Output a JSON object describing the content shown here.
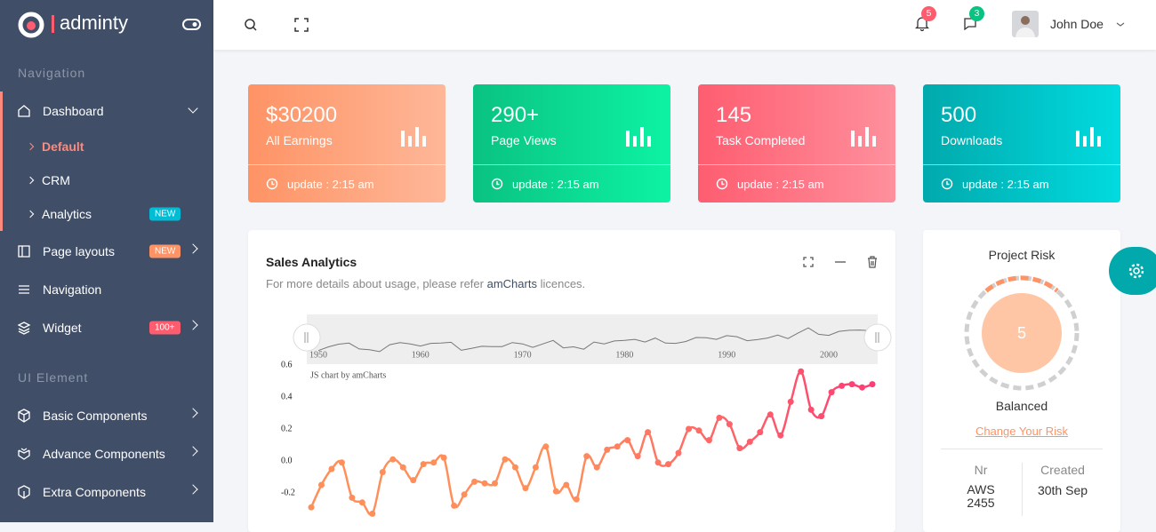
{
  "sidebar": {
    "brand": "adminty",
    "sections": [
      {
        "label": "Navigation",
        "items": [
          {
            "label": "Dashboard",
            "children": [
              {
                "label": "Default"
              },
              {
                "label": "CRM"
              },
              {
                "label": "Analytics",
                "badge": "NEW"
              }
            ]
          },
          {
            "label": "Page layouts",
            "badge": "NEW"
          },
          {
            "label": "Navigation"
          },
          {
            "label": "Widget",
            "badge": "100+"
          }
        ]
      },
      {
        "label": "UI Element",
        "items": [
          {
            "label": "Basic Components"
          },
          {
            "label": "Advance Components"
          },
          {
            "label": "Extra Components"
          }
        ]
      }
    ]
  },
  "header": {
    "notifications": 5,
    "messages": 3,
    "user": "John Doe"
  },
  "cards": [
    {
      "value": "$30200",
      "label": "All Earnings",
      "update": "update : 2:15 am"
    },
    {
      "value": "290+",
      "label": "Page Views",
      "update": "update : 2:15 am"
    },
    {
      "value": "145",
      "label": "Task Completed",
      "update": "update : 2:15 am"
    },
    {
      "value": "500",
      "label": "Downloads",
      "update": "update : 2:15 am"
    }
  ],
  "sales": {
    "title": "Sales Analytics",
    "subtitle": "For more details about usage, please refer",
    "link": "amCharts",
    "subtitle_end": "licences."
  },
  "chart_data": {
    "type": "line",
    "credit": "JS chart by amCharts",
    "x": [
      1950,
      1951,
      1952,
      1953,
      1954,
      1955,
      1956,
      1957,
      1958,
      1959,
      1960,
      1961,
      1962,
      1963,
      1964,
      1965,
      1966,
      1967,
      1968,
      1969,
      1970,
      1971,
      1972,
      1973,
      1974,
      1975,
      1976,
      1977,
      1978,
      1979,
      1980,
      1981,
      1982,
      1983,
      1984,
      1985,
      1986,
      1987,
      1988,
      1989,
      1990,
      1991,
      1992,
      1993,
      1994,
      1995,
      1996,
      1997,
      1998,
      1999,
      2000,
      2001,
      2002,
      2003,
      2004,
      2005
    ],
    "values": [
      -0.29,
      -0.15,
      -0.05,
      -0.01,
      -0.23,
      -0.26,
      -0.33,
      -0.07,
      0.01,
      -0.04,
      -0.12,
      -0.02,
      -0.01,
      0.02,
      -0.28,
      -0.21,
      -0.13,
      -0.14,
      -0.14,
      0.01,
      -0.04,
      -0.17,
      -0.04,
      0.09,
      -0.19,
      -0.15,
      -0.24,
      0.03,
      -0.04,
      0.07,
      0.09,
      0.13,
      0.03,
      0.18,
      -0.01,
      -0.02,
      0.05,
      0.2,
      0.19,
      0.13,
      0.27,
      0.23,
      0.08,
      0.12,
      0.18,
      0.29,
      0.16,
      0.37,
      0.56,
      0.32,
      0.28,
      0.43,
      0.47,
      0.48,
      0.46,
      0.48
    ],
    "xlim": [
      1950,
      2005
    ],
    "ylim": [
      -0.4,
      0.6
    ],
    "yticks": [
      0.6,
      0.4,
      0.2,
      {
        "value": 0,
        "label": "0.0"
      },
      -0.2
    ],
    "navigator_ticks": [
      1950,
      1960,
      1970,
      1980,
      1990,
      2000
    ],
    "color_start": "#ff8f5a",
    "color_end": "#fe3d74"
  },
  "risk": {
    "title": "Project Risk",
    "value": 5,
    "status": "Balanced",
    "action": "Change Your Risk",
    "columns": [
      {
        "header": "Nr",
        "value": "AWS 2455"
      },
      {
        "header": "Created",
        "value": "30th Sep"
      }
    ]
  }
}
